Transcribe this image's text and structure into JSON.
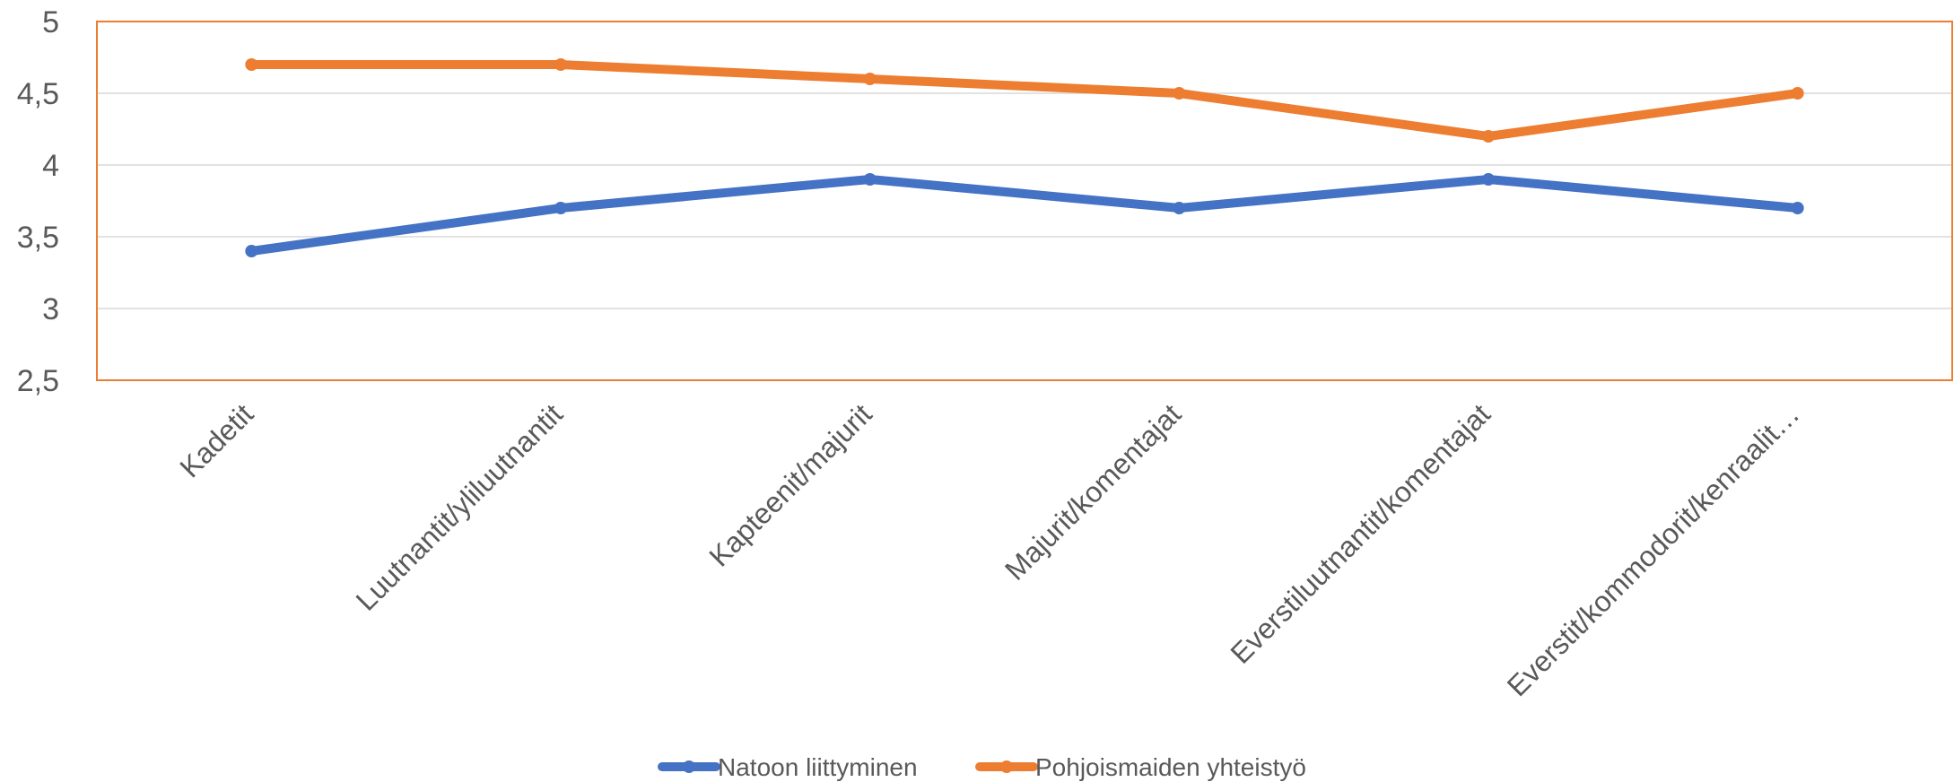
{
  "chart_data": {
    "type": "line",
    "title": "",
    "xlabel": "",
    "ylabel": "",
    "categories": [
      "Kadetit",
      "Luutnantit/yliluutnantit",
      "Kapteenit/majurit",
      "Majurit/komentajat",
      "Everstiluutnantit/komentajat",
      "Everstit/kommodorit/kenraalit…"
    ],
    "series": [
      {
        "name": "Natoon liittyminen",
        "color": "#4472C4",
        "values": [
          3.4,
          3.7,
          3.9,
          3.7,
          3.9,
          3.7
        ]
      },
      {
        "name": "Pohjoismaiden yhteistyö",
        "color": "#ED7D31",
        "values": [
          4.7,
          4.7,
          4.6,
          4.5,
          4.2,
          4.5
        ]
      }
    ],
    "ylim": [
      2.5,
      5
    ],
    "yticks": [
      "2,5",
      "3",
      "3,5",
      "4",
      "4,5",
      "5"
    ],
    "grid": true,
    "legend_position": "bottom",
    "plot_border_color": "#ED7D31"
  }
}
